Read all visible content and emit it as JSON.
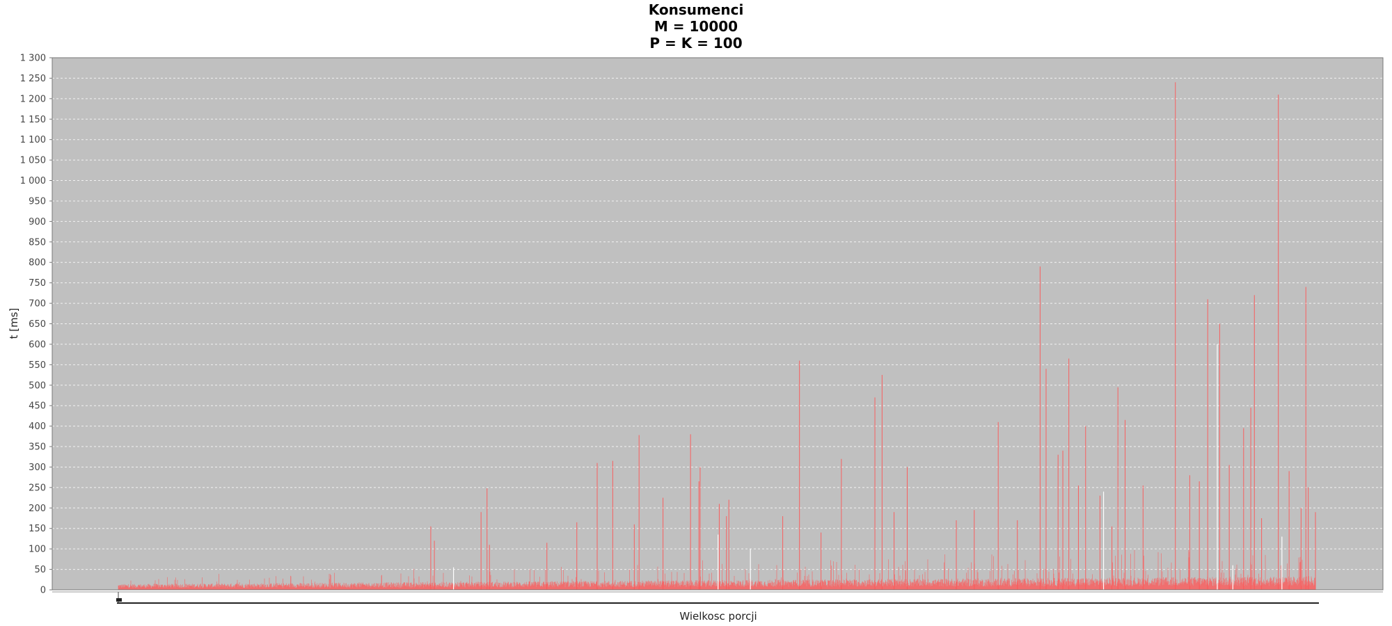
{
  "chart_data": {
    "type": "bar",
    "title": [
      "Konsumenci",
      "M = 10000",
      "P = K = 100"
    ],
    "xlabel": "Wielkosc porcji",
    "ylabel": "t [ms]",
    "ylim": [
      0,
      1300
    ],
    "ytick_step": 50,
    "ytick_labels": [
      "0",
      "50",
      "100",
      "150",
      "200",
      "250",
      "300",
      "350",
      "400",
      "450",
      "500",
      "550",
      "600",
      "650",
      "700",
      "750",
      "800",
      "850",
      "900",
      "950",
      "1 000",
      "1 050",
      "1 100",
      "1 150",
      "1 200",
      "1 250",
      "1 300"
    ],
    "grid": true,
    "x_count": 10000,
    "spikes": [
      {
        "x": 2610,
        "value": 155
      },
      {
        "x": 2640,
        "value": 120
      },
      {
        "x": 3030,
        "value": 190
      },
      {
        "x": 3080,
        "value": 248
      },
      {
        "x": 3100,
        "value": 110
      },
      {
        "x": 3580,
        "value": 115
      },
      {
        "x": 3830,
        "value": 165
      },
      {
        "x": 4000,
        "value": 310
      },
      {
        "x": 4130,
        "value": 315
      },
      {
        "x": 4310,
        "value": 160
      },
      {
        "x": 4350,
        "value": 378
      },
      {
        "x": 4550,
        "value": 225
      },
      {
        "x": 4780,
        "value": 380
      },
      {
        "x": 4850,
        "value": 265
      },
      {
        "x": 4860,
        "value": 300
      },
      {
        "x": 5020,
        "value": 210
      },
      {
        "x": 5080,
        "value": 180
      },
      {
        "x": 5100,
        "value": 220
      },
      {
        "x": 5550,
        "value": 180
      },
      {
        "x": 5690,
        "value": 560
      },
      {
        "x": 5870,
        "value": 140
      },
      {
        "x": 6040,
        "value": 320
      },
      {
        "x": 6320,
        "value": 470
      },
      {
        "x": 6380,
        "value": 525
      },
      {
        "x": 6480,
        "value": 190
      },
      {
        "x": 6590,
        "value": 300
      },
      {
        "x": 7000,
        "value": 170
      },
      {
        "x": 7150,
        "value": 195
      },
      {
        "x": 7350,
        "value": 410
      },
      {
        "x": 7510,
        "value": 170
      },
      {
        "x": 7700,
        "value": 790
      },
      {
        "x": 7750,
        "value": 540
      },
      {
        "x": 7850,
        "value": 330
      },
      {
        "x": 7890,
        "value": 340
      },
      {
        "x": 7940,
        "value": 565
      },
      {
        "x": 8020,
        "value": 255
      },
      {
        "x": 8080,
        "value": 400
      },
      {
        "x": 8200,
        "value": 230
      },
      {
        "x": 8300,
        "value": 155
      },
      {
        "x": 8350,
        "value": 495
      },
      {
        "x": 8410,
        "value": 415
      },
      {
        "x": 8560,
        "value": 255
      },
      {
        "x": 8830,
        "value": 1240
      },
      {
        "x": 8950,
        "value": 280
      },
      {
        "x": 9030,
        "value": 265
      },
      {
        "x": 9100,
        "value": 710
      },
      {
        "x": 9200,
        "value": 650
      },
      {
        "x": 9280,
        "value": 305
      },
      {
        "x": 9400,
        "value": 395
      },
      {
        "x": 9460,
        "value": 445
      },
      {
        "x": 9490,
        "value": 720
      },
      {
        "x": 9550,
        "value": 175
      },
      {
        "x": 9690,
        "value": 1210
      },
      {
        "x": 9780,
        "value": 290
      },
      {
        "x": 9880,
        "value": 200
      },
      {
        "x": 9920,
        "value": 740
      },
      {
        "x": 9940,
        "value": 250
      },
      {
        "x": 10000,
        "value": 190
      }
    ],
    "white_spikes": [
      {
        "x": 2800,
        "value": 55
      },
      {
        "x": 5010,
        "value": 135
      },
      {
        "x": 5280,
        "value": 100
      },
      {
        "x": 8230,
        "value": 240
      },
      {
        "x": 9180,
        "value": 600
      },
      {
        "x": 9310,
        "value": 60
      },
      {
        "x": 9720,
        "value": 130
      }
    ],
    "colors": {
      "plot_background": "#c0c0c0",
      "bar": "#ff5555",
      "bar_alt": "#ffffff",
      "gridline": "#ffffff"
    }
  }
}
